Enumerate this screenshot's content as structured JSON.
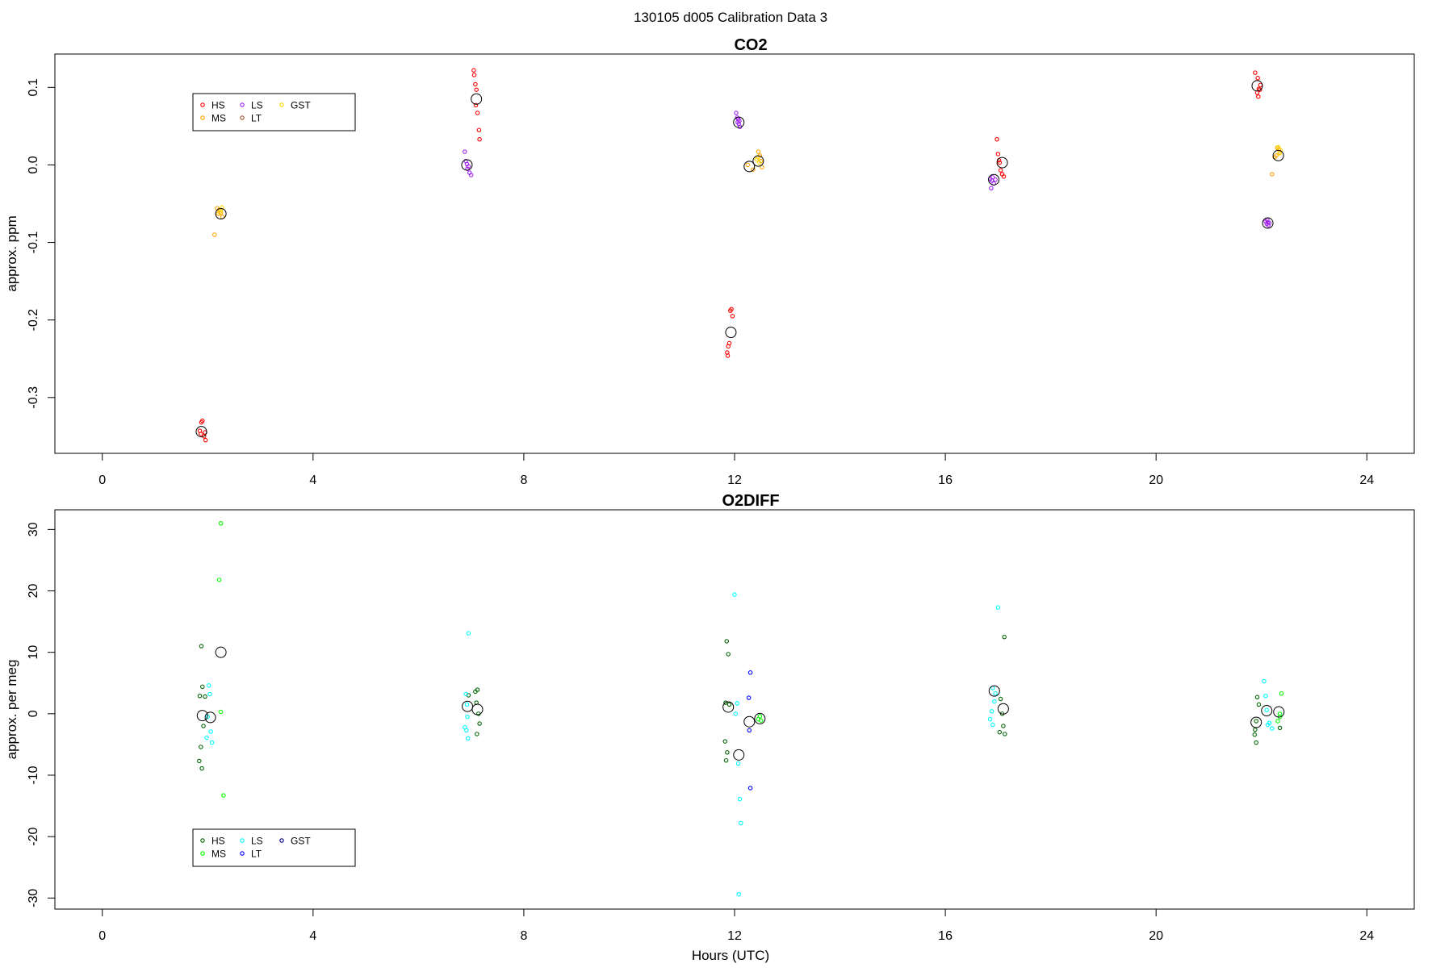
{
  "suptitle": "130105   d005   Calibration Data 3",
  "chart_data": [
    {
      "type": "scatter",
      "title": "CO2",
      "xlabel": "",
      "ylabel": "approx. ppm",
      "xlim": [
        -0.9,
        24.9
      ],
      "ylim": [
        -0.372,
        0.143
      ],
      "x_ticks": [
        0,
        4,
        8,
        12,
        16,
        20,
        24
      ],
      "y_ticks": [
        -0.3,
        -0.2,
        -0.1,
        0.0,
        0.1
      ],
      "y_tick_labels": [
        "-0.3",
        "-0.2",
        "-0.1",
        "0.0",
        "0.1"
      ],
      "legend": {
        "location": "top-left",
        "entries": [
          {
            "name": "HS",
            "color": "#ff0000"
          },
          {
            "name": "MS",
            "color": "#ffa500"
          },
          {
            "name": "LS",
            "color": "#a020f0"
          },
          {
            "name": "LT",
            "color": "#a0522d"
          },
          {
            "name": "GST",
            "color": "#ffd700"
          }
        ]
      },
      "series": [
        {
          "name": "HS",
          "color": "#ff0000",
          "points": [
            [
              1.88,
              -0.332
            ],
            [
              1.9,
              -0.33
            ],
            [
              1.85,
              -0.343
            ],
            [
              1.87,
              -0.347
            ],
            [
              1.93,
              -0.35
            ],
            [
              1.96,
              -0.355
            ],
            [
              1.95,
              -0.345
            ],
            [
              7.05,
              0.122
            ],
            [
              7.06,
              0.116
            ],
            [
              7.08,
              0.104
            ],
            [
              7.1,
              0.097
            ],
            [
              7.09,
              0.077
            ],
            [
              7.12,
              0.067
            ],
            [
              7.15,
              0.045
            ],
            [
              7.16,
              0.033
            ],
            [
              11.92,
              -0.188
            ],
            [
              11.94,
              -0.186
            ],
            [
              11.96,
              -0.195
            ],
            [
              11.9,
              -0.23
            ],
            [
              11.88,
              -0.234
            ],
            [
              11.86,
              -0.242
            ],
            [
              11.87,
              -0.246
            ],
            [
              16.98,
              0.033
            ],
            [
              17.0,
              0.014
            ],
            [
              17.02,
              0.006
            ],
            [
              17.05,
              -0.007
            ],
            [
              17.08,
              -0.012
            ],
            [
              17.11,
              -0.015
            ],
            [
              17.03,
              0.003
            ],
            [
              21.88,
              0.119
            ],
            [
              21.93,
              0.112
            ],
            [
              21.98,
              0.103
            ],
            [
              21.95,
              0.098
            ],
            [
              21.92,
              0.093
            ],
            [
              21.94,
              0.088
            ],
            [
              21.97,
              0.097
            ]
          ]
        },
        {
          "name": "MS",
          "color": "#ffa500",
          "points": [
            [
              2.18,
              -0.056
            ],
            [
              2.22,
              -0.058
            ],
            [
              2.25,
              -0.062
            ],
            [
              2.28,
              -0.067
            ],
            [
              2.13,
              -0.09
            ],
            [
              2.2,
              -0.063
            ],
            [
              12.25,
              0.0
            ],
            [
              12.45,
              0.017
            ],
            [
              12.48,
              0.012
            ],
            [
              12.5,
              0.005
            ],
            [
              12.52,
              -0.003
            ],
            [
              12.35,
              -0.006
            ],
            [
              22.3,
              0.022
            ],
            [
              22.33,
              0.02
            ],
            [
              22.35,
              0.016
            ],
            [
              22.25,
              0.01
            ],
            [
              22.2,
              -0.012
            ],
            [
              22.28,
              0.012
            ]
          ]
        },
        {
          "name": "LS",
          "color": "#a020f0",
          "points": [
            [
              6.88,
              0.017
            ],
            [
              6.9,
              0.005
            ],
            [
              6.92,
              0.001
            ],
            [
              6.95,
              -0.002
            ],
            [
              6.97,
              -0.01
            ],
            [
              7.0,
              -0.013
            ],
            [
              6.93,
              -0.005
            ],
            [
              12.03,
              0.067
            ],
            [
              12.05,
              0.061
            ],
            [
              12.07,
              0.059
            ],
            [
              12.08,
              0.053
            ],
            [
              12.1,
              0.049
            ],
            [
              12.06,
              0.055
            ],
            [
              12.09,
              0.057
            ],
            [
              16.85,
              -0.018
            ],
            [
              16.88,
              -0.02
            ],
            [
              16.92,
              -0.024
            ],
            [
              16.95,
              -0.019
            ],
            [
              16.87,
              -0.03
            ],
            [
              16.9,
              -0.016
            ],
            [
              22.08,
              -0.073
            ],
            [
              22.1,
              -0.076
            ],
            [
              22.12,
              -0.074
            ],
            [
              22.13,
              -0.078
            ],
            [
              22.11,
              -0.071
            ],
            [
              22.15,
              -0.075
            ]
          ]
        },
        {
          "name": "LT",
          "color": "#a0522d",
          "points": []
        },
        {
          "name": "GST",
          "color": "#ffd700",
          "points": [
            [
              2.25,
              -0.058
            ],
            [
              2.27,
              -0.055
            ],
            [
              2.23,
              -0.061
            ],
            [
              12.42,
              0.007
            ],
            [
              12.47,
              0.003
            ],
            [
              12.44,
              0.01
            ],
            [
              22.32,
              0.023
            ],
            [
              22.36,
              0.019
            ],
            [
              22.34,
              0.015
            ]
          ]
        },
        {
          "name": "means",
          "color": "#000000",
          "points": [
            [
              1.88,
              -0.344
            ],
            [
              2.25,
              -0.063
            ],
            [
              6.92,
              0.0
            ],
            [
              7.1,
              0.085
            ],
            [
              11.93,
              -0.216
            ],
            [
              12.08,
              0.055
            ],
            [
              12.28,
              -0.002
            ],
            [
              12.45,
              0.005
            ],
            [
              16.92,
              -0.019
            ],
            [
              17.08,
              0.003
            ],
            [
              21.92,
              0.102
            ],
            [
              22.12,
              -0.075
            ],
            [
              22.32,
              0.012
            ]
          ]
        }
      ]
    },
    {
      "type": "scatter",
      "title": "O2DIFF",
      "xlabel": "Hours (UTC)",
      "ylabel": "approx. per meg",
      "xlim": [
        -0.9,
        24.9
      ],
      "ylim": [
        -31.8,
        33.2
      ],
      "x_ticks": [
        0,
        4,
        8,
        12,
        16,
        20,
        24
      ],
      "y_ticks": [
        -30,
        -20,
        -10,
        0,
        10,
        20,
        30
      ],
      "y_tick_labels": [
        "-30",
        "-20",
        "-10",
        "0",
        "10",
        "20",
        "30"
      ],
      "legend": {
        "location": "bottom-left",
        "entries": [
          {
            "name": "HS",
            "color": "#006400"
          },
          {
            "name": "MS",
            "color": "#00ff00"
          },
          {
            "name": "LS",
            "color": "#00ffff"
          },
          {
            "name": "LT",
            "color": "#0000ff"
          },
          {
            "name": "GST",
            "color": "#00008b"
          }
        ]
      },
      "series": [
        {
          "name": "HS",
          "color": "#006400",
          "points": [
            [
              1.88,
              11.0
            ],
            [
              1.9,
              4.4
            ],
            [
              1.85,
              2.9
            ],
            [
              1.95,
              2.8
            ],
            [
              1.92,
              -2.0
            ],
            [
              1.87,
              -5.4
            ],
            [
              1.84,
              -7.7
            ],
            [
              1.89,
              -8.9
            ],
            [
              6.95,
              3.0
            ],
            [
              7.12,
              3.9
            ],
            [
              7.08,
              3.6
            ],
            [
              7.1,
              1.8
            ],
            [
              7.14,
              0.0
            ],
            [
              7.16,
              -1.6
            ],
            [
              7.11,
              -3.3
            ],
            [
              11.85,
              11.8
            ],
            [
              11.88,
              9.7
            ],
            [
              11.83,
              1.8
            ],
            [
              11.9,
              1.5
            ],
            [
              11.82,
              -4.5
            ],
            [
              11.86,
              -6.3
            ],
            [
              11.84,
              -7.6
            ],
            [
              17.05,
              2.4
            ],
            [
              17.12,
              12.5
            ],
            [
              17.08,
              0.0
            ],
            [
              17.1,
              -2.0
            ],
            [
              17.03,
              -3.0
            ],
            [
              17.13,
              -3.3
            ],
            [
              21.92,
              2.7
            ],
            [
              21.95,
              1.5
            ],
            [
              21.9,
              -1.2
            ],
            [
              21.88,
              -2.6
            ],
            [
              21.87,
              -3.4
            ],
            [
              21.9,
              -4.7
            ],
            [
              22.35,
              -2.3
            ]
          ]
        },
        {
          "name": "MS",
          "color": "#00ff00",
          "points": [
            [
              2.25,
              31.0
            ],
            [
              2.22,
              21.8
            ],
            [
              2.25,
              0.3
            ],
            [
              2.3,
              -13.3
            ],
            [
              12.48,
              -0.4
            ],
            [
              12.45,
              -0.9
            ],
            [
              12.5,
              -1.1
            ],
            [
              22.35,
              -0.5
            ],
            [
              22.38,
              3.3
            ],
            [
              22.31,
              -1.2
            ],
            [
              22.35,
              0.0
            ]
          ]
        },
        {
          "name": "LS",
          "color": "#00ffff",
          "points": [
            [
              2.02,
              4.6
            ],
            [
              2.04,
              3.2
            ],
            [
              2.0,
              -0.5
            ],
            [
              2.06,
              -2.9
            ],
            [
              1.98,
              -3.9
            ],
            [
              2.08,
              -4.7
            ],
            [
              6.95,
              13.1
            ],
            [
              6.9,
              3.2
            ],
            [
              6.92,
              1.5
            ],
            [
              6.93,
              -0.5
            ],
            [
              6.88,
              -2.2
            ],
            [
              6.91,
              -2.7
            ],
            [
              6.94,
              -4.0
            ],
            [
              12.0,
              19.4
            ],
            [
              12.05,
              1.7
            ],
            [
              12.02,
              0.0
            ],
            [
              12.07,
              -8.1
            ],
            [
              12.1,
              -13.9
            ],
            [
              12.12,
              -17.8
            ],
            [
              12.08,
              -29.4
            ],
            [
              16.9,
              4.2
            ],
            [
              16.95,
              3.3
            ],
            [
              16.93,
              2.0
            ],
            [
              16.88,
              0.4
            ],
            [
              16.85,
              -0.9
            ],
            [
              16.9,
              -1.8
            ],
            [
              17.0,
              17.3
            ],
            [
              22.05,
              5.3
            ],
            [
              22.08,
              2.9
            ],
            [
              22.1,
              0.6
            ],
            [
              22.15,
              -1.5
            ],
            [
              22.2,
              -2.4
            ],
            [
              22.12,
              -1.8
            ]
          ]
        },
        {
          "name": "LT",
          "color": "#0000ff",
          "points": [
            [
              12.3,
              6.7
            ],
            [
              12.27,
              2.6
            ],
            [
              12.28,
              -2.7
            ],
            [
              12.3,
              -12.1
            ]
          ]
        },
        {
          "name": "GST",
          "color": "#00008b",
          "points": []
        },
        {
          "name": "means",
          "color": "#000000",
          "points": [
            [
              1.9,
              -0.3
            ],
            [
              2.05,
              -0.6
            ],
            [
              2.25,
              10.0
            ],
            [
              6.93,
              1.2
            ],
            [
              7.12,
              0.7
            ],
            [
              11.88,
              1.1
            ],
            [
              12.08,
              -6.7
            ],
            [
              12.28,
              -1.3
            ],
            [
              12.48,
              -0.8
            ],
            [
              16.93,
              3.7
            ],
            [
              17.1,
              0.8
            ],
            [
              21.9,
              -1.4
            ],
            [
              22.1,
              0.5
            ],
            [
              22.33,
              0.3
            ]
          ]
        }
      ]
    }
  ]
}
